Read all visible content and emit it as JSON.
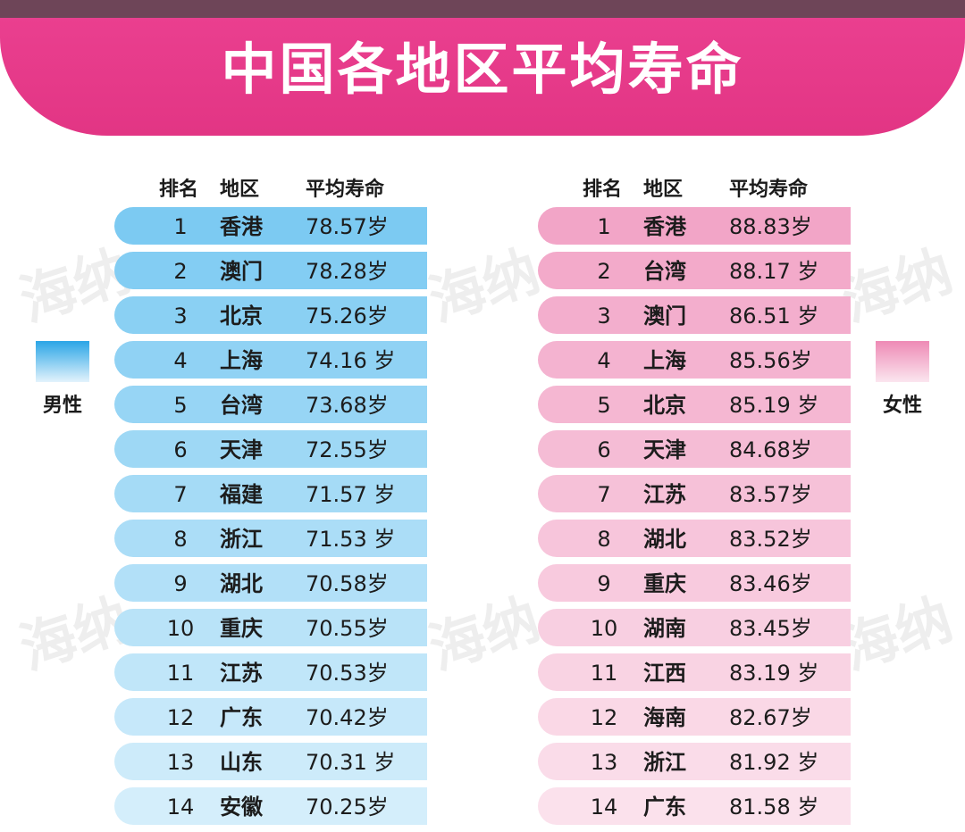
{
  "title": "中国各地区平均寿命",
  "watermark": "海纳",
  "colors": {
    "banner": "#e53a88",
    "top_strip": "#6e4558",
    "male_row_top": "#7ccaf2",
    "male_row_bottom": "#d4eefb",
    "female_row_top": "#f2a5c7",
    "female_row_bottom": "#fbe1ec"
  },
  "headers": {
    "rank": "排名",
    "region": "地区",
    "life": "平均寿命"
  },
  "male": {
    "legend": "男性",
    "rows": [
      {
        "rank": "1",
        "region": "香港",
        "life": "78.57岁"
      },
      {
        "rank": "2",
        "region": "澳门",
        "life": "78.28岁"
      },
      {
        "rank": "3",
        "region": "北京",
        "life": "75.26岁"
      },
      {
        "rank": "4",
        "region": "上海",
        "life": "74.16 岁"
      },
      {
        "rank": "5",
        "region": "台湾",
        "life": "73.68岁"
      },
      {
        "rank": "6",
        "region": "天津",
        "life": "72.55岁"
      },
      {
        "rank": "7",
        "region": "福建",
        "life": "71.57 岁"
      },
      {
        "rank": "8",
        "region": "浙江",
        "life": "71.53 岁"
      },
      {
        "rank": "9",
        "region": "湖北",
        "life": "70.58岁"
      },
      {
        "rank": "10",
        "region": "重庆",
        "life": "70.55岁"
      },
      {
        "rank": "11",
        "region": "江苏",
        "life": "70.53岁"
      },
      {
        "rank": "12",
        "region": "广东",
        "life": "70.42岁"
      },
      {
        "rank": "13",
        "region": "山东",
        "life": "70.31 岁"
      },
      {
        "rank": "14",
        "region": "安徽",
        "life": "70.25岁"
      }
    ]
  },
  "female": {
    "legend": "女性",
    "rows": [
      {
        "rank": "1",
        "region": "香港",
        "life": "88.83岁"
      },
      {
        "rank": "2",
        "region": "台湾",
        "life": "88.17 岁"
      },
      {
        "rank": "3",
        "region": "澳门",
        "life": "86.51 岁"
      },
      {
        "rank": "4",
        "region": "上海",
        "life": "85.56岁"
      },
      {
        "rank": "5",
        "region": "北京",
        "life": "85.19 岁"
      },
      {
        "rank": "6",
        "region": "天津",
        "life": "84.68岁"
      },
      {
        "rank": "7",
        "region": "江苏",
        "life": "83.57岁"
      },
      {
        "rank": "8",
        "region": "湖北",
        "life": "83.52岁"
      },
      {
        "rank": "9",
        "region": "重庆",
        "life": "83.46岁"
      },
      {
        "rank": "10",
        "region": "湖南",
        "life": "83.45岁"
      },
      {
        "rank": "11",
        "region": "江西",
        "life": "83.19 岁"
      },
      {
        "rank": "12",
        "region": "海南",
        "life": "82.67岁"
      },
      {
        "rank": "13",
        "region": "浙江",
        "life": "81.92 岁"
      },
      {
        "rank": "14",
        "region": "广东",
        "life": "81.58 岁"
      }
    ]
  }
}
